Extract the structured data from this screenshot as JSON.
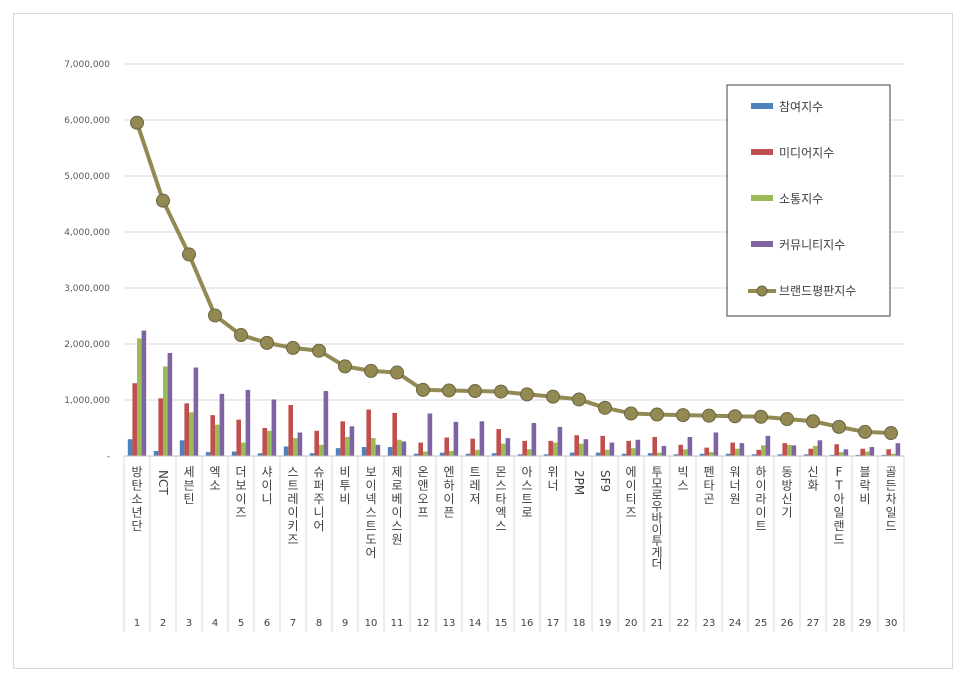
{
  "chart_data": {
    "type": "bar",
    "title": "",
    "xlabel": "",
    "ylabel": "",
    "ylim": [
      0,
      7000000
    ],
    "yticks": [
      {
        "value": 0,
        "label": "-"
      },
      {
        "value": 1000000,
        "label": "1,000,000"
      },
      {
        "value": 2000000,
        "label": "2,000,000"
      },
      {
        "value": 3000000,
        "label": "3,000,000"
      },
      {
        "value": 4000000,
        "label": "4,000,000"
      },
      {
        "value": 5000000,
        "label": "5,000,000"
      },
      {
        "value": 6000000,
        "label": "6,000,000"
      },
      {
        "value": 7000000,
        "label": "7,000,000"
      }
    ],
    "grid": true,
    "legend_position": "top-right",
    "ranks": [
      "1",
      "2",
      "3",
      "4",
      "5",
      "6",
      "7",
      "8",
      "9",
      "10",
      "11",
      "12",
      "13",
      "14",
      "15",
      "16",
      "17",
      "18",
      "19",
      "20",
      "21",
      "22",
      "23",
      "24",
      "25",
      "26",
      "27",
      "28",
      "29",
      "30"
    ],
    "categories": [
      "방탄소년단",
      "NCT",
      "세븐틴",
      "엑소",
      "더보이즈",
      "샤이니",
      "스트레이키즈",
      "슈퍼주니어",
      "비투비",
      "보이넥스트도어",
      "제로베이스원",
      "온앤오프",
      "엔하이픈",
      "트레저",
      "몬스타엑스",
      "아스트로",
      "위너",
      "2PM",
      "SF9",
      "에이티즈",
      "투모로우바이투게더",
      "빅스",
      "펜타곤",
      "워너원",
      "하이라이트",
      "동방신기",
      "신화",
      "FT아일랜드",
      "블락비",
      "골든차일드"
    ],
    "series": [
      {
        "name": "참여지수",
        "color": "#4f81bd",
        "kind": "bar",
        "values": [
          300000,
          90000,
          280000,
          70000,
          80000,
          50000,
          170000,
          50000,
          140000,
          160000,
          160000,
          40000,
          60000,
          40000,
          50000,
          30000,
          30000,
          60000,
          60000,
          40000,
          50000,
          30000,
          40000,
          40000,
          30000,
          30000,
          30000,
          20000,
          20000,
          20000
        ]
      },
      {
        "name": "미디어지수",
        "color": "#c0504d",
        "kind": "bar",
        "values": [
          1300000,
          1030000,
          940000,
          730000,
          650000,
          500000,
          910000,
          450000,
          620000,
          830000,
          770000,
          240000,
          330000,
          310000,
          480000,
          270000,
          270000,
          370000,
          360000,
          270000,
          340000,
          200000,
          150000,
          240000,
          110000,
          230000,
          130000,
          210000,
          130000,
          120000
        ]
      },
      {
        "name": "소통지수",
        "color": "#9bbb59",
        "kind": "bar",
        "values": [
          2100000,
          1600000,
          780000,
          560000,
          240000,
          450000,
          320000,
          200000,
          340000,
          320000,
          290000,
          80000,
          90000,
          110000,
          220000,
          120000,
          240000,
          220000,
          110000,
          140000,
          60000,
          120000,
          70000,
          130000,
          190000,
          200000,
          180000,
          70000,
          80000,
          40000
        ]
      },
      {
        "name": "커뮤니티지수",
        "color": "#8064a2",
        "kind": "bar",
        "values": [
          2240000,
          1840000,
          1580000,
          1110000,
          1180000,
          1010000,
          420000,
          1160000,
          530000,
          200000,
          260000,
          760000,
          610000,
          620000,
          320000,
          590000,
          520000,
          300000,
          240000,
          290000,
          180000,
          340000,
          420000,
          230000,
          360000,
          190000,
          280000,
          120000,
          160000,
          230000
        ]
      },
      {
        "name": "브랜드평판지수",
        "color": "#938953",
        "kind": "line",
        "values": [
          5950000,
          4560000,
          3600000,
          2510000,
          2160000,
          2020000,
          1930000,
          1880000,
          1600000,
          1520000,
          1490000,
          1180000,
          1170000,
          1160000,
          1150000,
          1100000,
          1060000,
          1010000,
          860000,
          760000,
          740000,
          730000,
          720000,
          710000,
          700000,
          660000,
          620000,
          520000,
          430000,
          410000
        ]
      }
    ]
  }
}
